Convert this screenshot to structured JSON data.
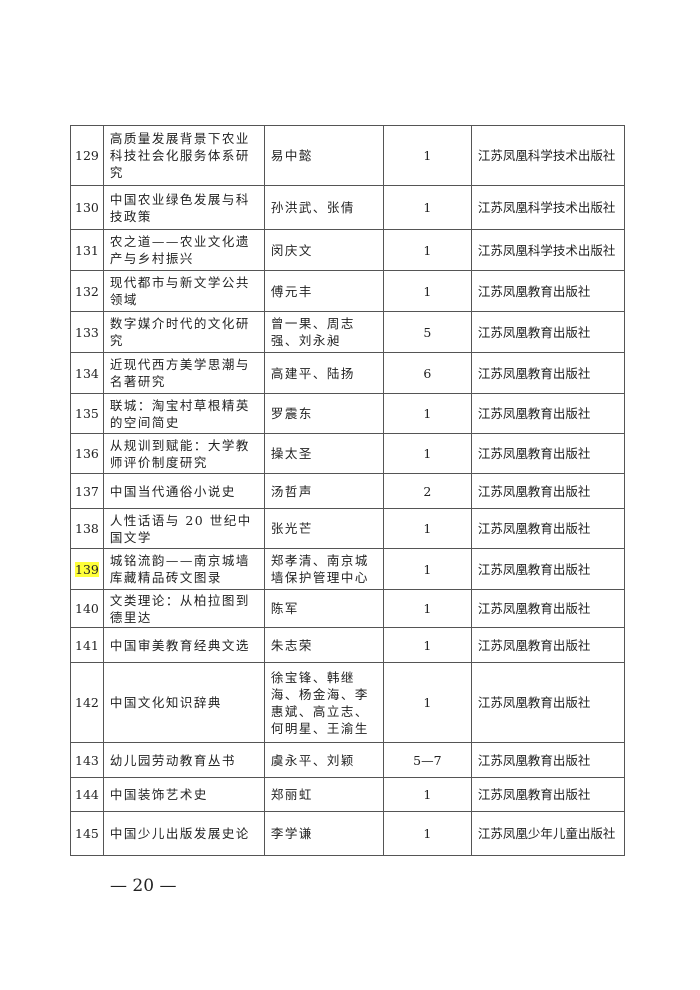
{
  "rows": [
    {
      "num": "129",
      "title": "高质量发展背景下农业科技社会化服务体系研究",
      "author": "易中懿",
      "count": "1",
      "publisher": "江苏凤凰科学技术出版社",
      "h": 60
    },
    {
      "num": "130",
      "title": "中国农业绿色发展与科技政策",
      "author": "孙洪武、张倩",
      "count": "1",
      "publisher": "江苏凤凰科学技术出版社",
      "h": 44
    },
    {
      "num": "131",
      "title": "农之道——农业文化遗产与乡村振兴",
      "author": "闵庆文",
      "count": "1",
      "publisher": "江苏凤凰科学技术出版社",
      "h": 41
    },
    {
      "num": "132",
      "title": "现代都市与新文学公共领域",
      "author": "傅元丰",
      "count": "1",
      "publisher": "江苏凤凰教育出版社",
      "h": 41
    },
    {
      "num": "133",
      "title": "数字媒介时代的文化研究",
      "author": "曾一果、周志强、刘永昶",
      "count": "5",
      "publisher": "江苏凤凰教育出版社",
      "h": 41
    },
    {
      "num": "134",
      "title": "近现代西方美学思潮与名著研究",
      "author": "高建平、陆扬",
      "count": "6",
      "publisher": "江苏凤凰教育出版社",
      "h": 41
    },
    {
      "num": "135",
      "title": "联城：淘宝村草根精英的空间简史",
      "author": "罗震东",
      "count": "1",
      "publisher": "江苏凤凰教育出版社",
      "h": 40
    },
    {
      "num": "136",
      "title": "从规训到赋能：大学教师评价制度研究",
      "author": "操太圣",
      "count": "1",
      "publisher": "江苏凤凰教育出版社",
      "h": 40
    },
    {
      "num": "137",
      "title": "中国当代通俗小说史",
      "author": "汤哲声",
      "count": "2",
      "publisher": "江苏凤凰教育出版社",
      "h": 35
    },
    {
      "num": "138",
      "title": "人性话语与 20 世纪中国文学",
      "author": "张光芒",
      "count": "1",
      "publisher": "江苏凤凰教育出版社",
      "h": 40
    },
    {
      "num": "139",
      "title": "城铭流韵——南京城墙库藏精品砖文图录",
      "author": "郑孝清、南京城墙保护管理中心",
      "count": "1",
      "publisher": "江苏凤凰教育出版社",
      "h": 41,
      "highlight": true
    },
    {
      "num": "140",
      "title": "文类理论：从柏拉图到德里达",
      "author": "陈军",
      "count": "1",
      "publisher": "江苏凤凰教育出版社",
      "h": 38
    },
    {
      "num": "141",
      "title": "中国审美教育经典文选",
      "author": "朱志荣",
      "count": "1",
      "publisher": "江苏凤凰教育出版社",
      "h": 35
    },
    {
      "num": "142",
      "title": "中国文化知识辞典",
      "author": "徐宝锋、韩继海、杨金海、李惠斌、高立志、何明星、王渝生",
      "count": "1",
      "publisher": "江苏凤凰教育出版社",
      "h": 80
    },
    {
      "num": "143",
      "title": "幼儿园劳动教育丛书",
      "author": "虞永平、刘颖",
      "count": "5—7",
      "publisher": "江苏凤凰教育出版社",
      "h": 35
    },
    {
      "num": "144",
      "title": "中国装饰艺术史",
      "author": "郑丽虹",
      "count": "1",
      "publisher": "江苏凤凰教育出版社",
      "h": 34
    },
    {
      "num": "145",
      "title": "中国少儿出版发展史论",
      "author": "李学谦",
      "count": "1",
      "publisher": "江苏凤凰少年儿童出版社",
      "h": 44
    }
  ],
  "highlight_color": "#ffff3a",
  "page_number": "— 20 —"
}
